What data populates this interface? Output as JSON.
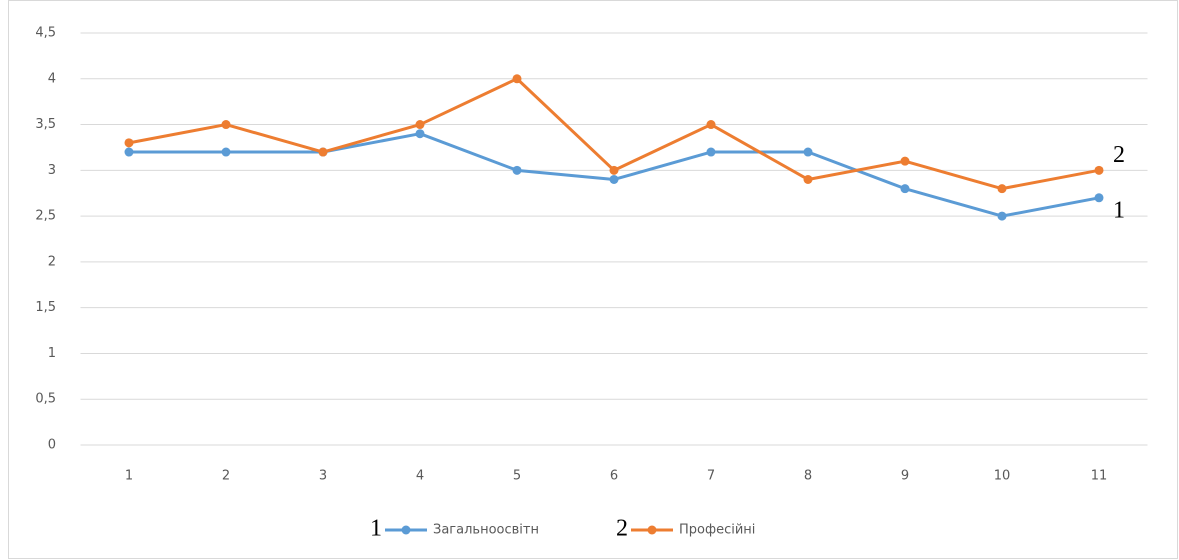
{
  "chart_data": {
    "type": "line",
    "categories": [
      "1",
      "2",
      "3",
      "4",
      "5",
      "6",
      "7",
      "8",
      "9",
      "10",
      "11"
    ],
    "series": [
      {
        "name": "Загальноосвітн",
        "number": "1",
        "color": "#5b9bd5",
        "values": [
          3.2,
          3.2,
          3.2,
          3.4,
          3.0,
          2.9,
          3.2,
          3.2,
          2.8,
          2.5,
          2.7
        ]
      },
      {
        "name": "Професійні",
        "number": "2",
        "color": "#ed7d31",
        "values": [
          3.3,
          3.5,
          3.2,
          3.5,
          4.0,
          3.0,
          3.5,
          2.9,
          3.1,
          2.8,
          3.0
        ]
      }
    ],
    "ylim": [
      0,
      4.5
    ],
    "yticks": [
      0,
      {
        "value": 0.5,
        "label": "0,5"
      },
      1,
      {
        "value": 1.5,
        "label": "1,5"
      },
      2,
      {
        "value": 2.5,
        "label": "2,5"
      },
      3,
      {
        "value": 3.5,
        "label": "3,5"
      },
      4,
      {
        "value": 4.5,
        "label": "4,5"
      }
    ],
    "grid": true,
    "legend": "bottom"
  }
}
